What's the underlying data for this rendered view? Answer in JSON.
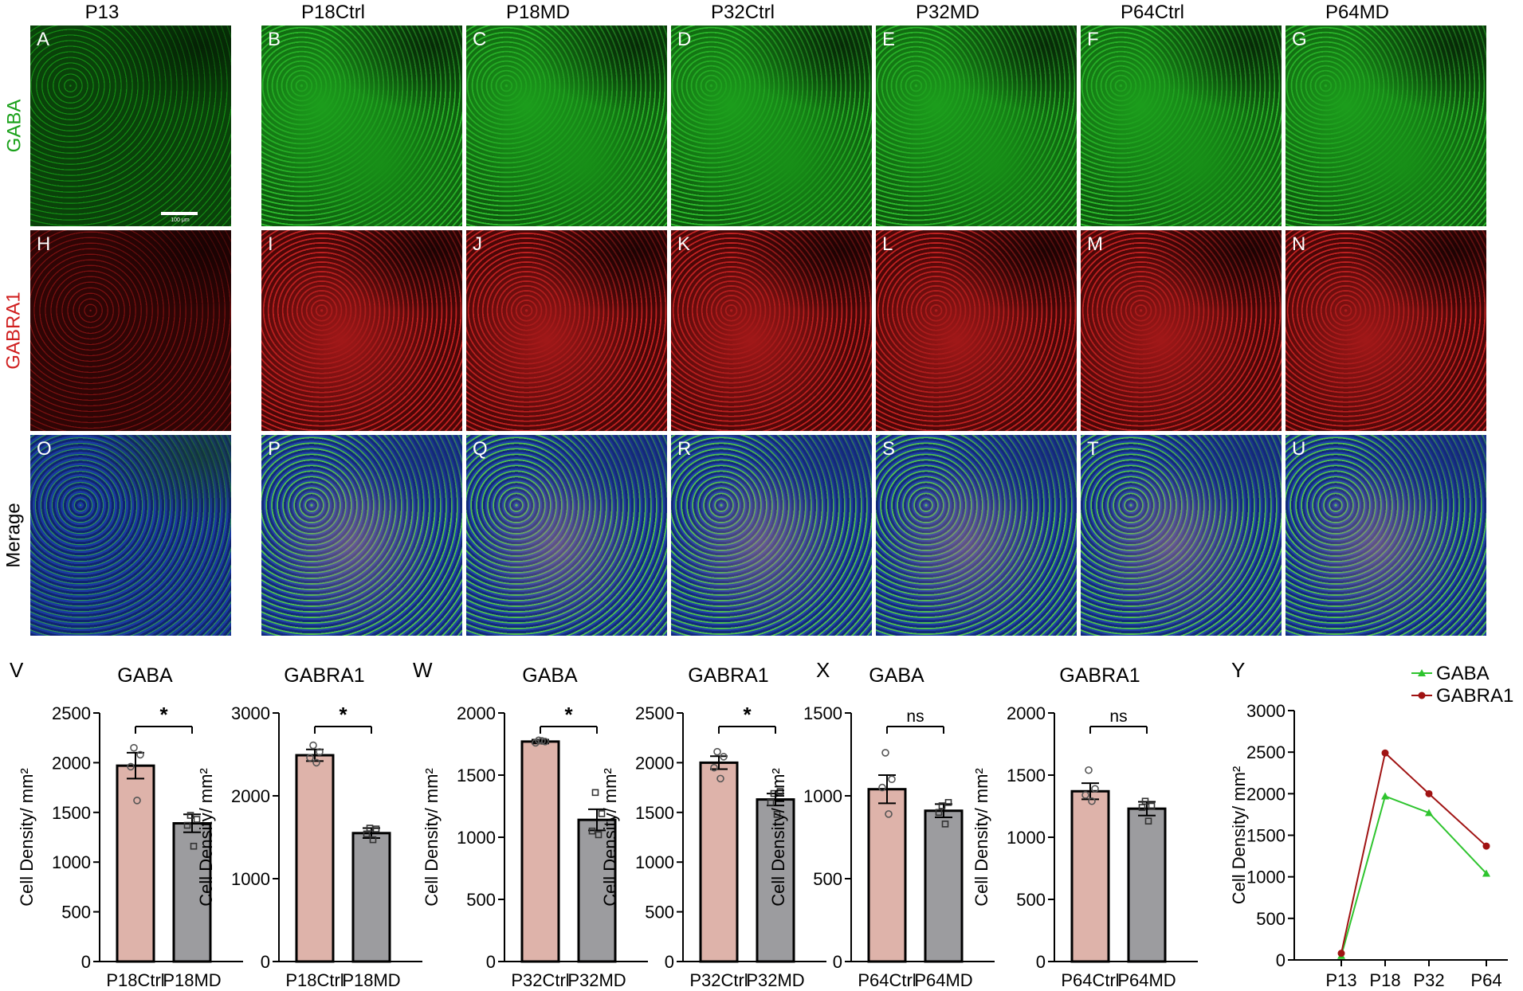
{
  "columns": [
    "P13",
    "P18Ctrl",
    "P18MD",
    "P32Ctrl",
    "P32MD",
    "P64Ctrl",
    "P64MD"
  ],
  "rows": [
    {
      "label": "GABA",
      "color": "#1aa11a",
      "letters": [
        "A",
        "B",
        "C",
        "D",
        "E",
        "F",
        "G"
      ]
    },
    {
      "label": "GABRA1",
      "color": "#d01f1f",
      "letters": [
        "H",
        "I",
        "J",
        "K",
        "L",
        "M",
        "N"
      ]
    },
    {
      "label": "Merage",
      "color": "#000000",
      "letters": [
        "O",
        "P",
        "Q",
        "R",
        "S",
        "T",
        "U"
      ]
    }
  ],
  "scale_bar": "100 μm",
  "panel_letters": [
    "V",
    "W",
    "X",
    "Y"
  ],
  "colors": {
    "ctrl_bar": "#deb3aa",
    "md_bar": "#9c9c9f",
    "gaba_line": "#2ec42e",
    "gabra1_line": "#a01313"
  },
  "chart_data": [
    {
      "type": "bar",
      "panel": "V",
      "title": "GABA",
      "ylabel": "Cell Density/ mm²",
      "categories": [
        "P18Ctrl",
        "P18MD"
      ],
      "values": [
        1970,
        1390
      ],
      "error": [
        130,
        90
      ],
      "points": [
        [
          1960,
          2080,
          2150,
          1620
        ],
        [
          1370,
          1430,
          1470,
          1160
        ]
      ],
      "ylim": [
        0,
        2500
      ],
      "yticks": [
        0,
        500,
        1000,
        1500,
        2000,
        2500
      ],
      "significance": "*"
    },
    {
      "type": "bar",
      "panel": "V",
      "title": "GABRA1",
      "ylabel": "Cell Density/ mm²",
      "categories": [
        "P18Ctrl",
        "P18MD"
      ],
      "values": [
        2490,
        1550
      ],
      "error": [
        70,
        60
      ],
      "points": [
        [
          2460,
          2530,
          2610,
          2400
        ],
        [
          1540,
          1600,
          1610,
          1470
        ]
      ],
      "ylim": [
        0,
        3000
      ],
      "yticks": [
        0,
        1000,
        2000,
        3000
      ],
      "significance": "*"
    },
    {
      "type": "bar",
      "panel": "W",
      "title": "GABA",
      "ylabel": "Cell Density/ mm²",
      "categories": [
        "P32Ctrl",
        "P32MD"
      ],
      "values": [
        1770,
        1140
      ],
      "error": [
        15,
        85
      ],
      "points": [
        [
          1760,
          1770,
          1780,
          1775
        ],
        [
          1050,
          1190,
          1360,
          1020
        ]
      ],
      "ylim": [
        0,
        2000
      ],
      "yticks": [
        0,
        500,
        1000,
        1500,
        2000
      ],
      "significance": "*"
    },
    {
      "type": "bar",
      "panel": "W",
      "title": "GABRA1",
      "ylabel": "Cell Density/ mm²",
      "categories": [
        "P32Ctrl",
        "P32MD"
      ],
      "values": [
        2000,
        1630
      ],
      "error": [
        65,
        60
      ],
      "points": [
        [
          1950,
          2060,
          2110,
          1840
        ],
        [
          1600,
          1710,
          1690,
          1480
        ]
      ],
      "ylim": [
        0,
        2500
      ],
      "yticks": [
        0,
        500,
        1000,
        1500,
        2000,
        2500
      ],
      "significance": "*"
    },
    {
      "type": "bar",
      "panel": "X",
      "title": "GABA",
      "ylabel": "Cell Density/ mm²",
      "categories": [
        "P64Ctrl",
        "P64MD"
      ],
      "values": [
        1040,
        910
      ],
      "error": [
        85,
        40
      ],
      "points": [
        [
          1050,
          1100,
          1260,
          890
        ],
        [
          900,
          960,
          940,
          830
        ]
      ],
      "ylim": [
        0,
        1500
      ],
      "yticks": [
        0,
        500,
        1000,
        1500
      ],
      "significance": "ns"
    },
    {
      "type": "bar",
      "panel": "X",
      "title": "GABRA1",
      "ylabel": "Cell Density/ mm²",
      "categories": [
        "P64Ctrl",
        "P64MD"
      ],
      "values": [
        1370,
        1230
      ],
      "error": [
        65,
        55
      ],
      "points": [
        [
          1340,
          1390,
          1540,
          1290
        ],
        [
          1240,
          1250,
          1290,
          1130
        ]
      ],
      "ylim": [
        0,
        2000
      ],
      "yticks": [
        0,
        500,
        1000,
        1500,
        2000
      ],
      "significance": "ns"
    },
    {
      "type": "line",
      "panel": "Y",
      "ylabel": "Cell Density/ mm²",
      "categories": [
        "P13",
        "P18",
        "P32",
        "P64"
      ],
      "ylim": [
        0,
        3000
      ],
      "yticks": [
        0,
        500,
        1000,
        1500,
        2000,
        2500,
        3000
      ],
      "legend": "top-right",
      "series": [
        {
          "name": "GABA",
          "values": [
            50,
            1970,
            1770,
            1040
          ],
          "marker": "triangle"
        },
        {
          "name": "GABRA1",
          "values": [
            80,
            2490,
            2000,
            1370
          ],
          "marker": "circle"
        }
      ]
    }
  ]
}
